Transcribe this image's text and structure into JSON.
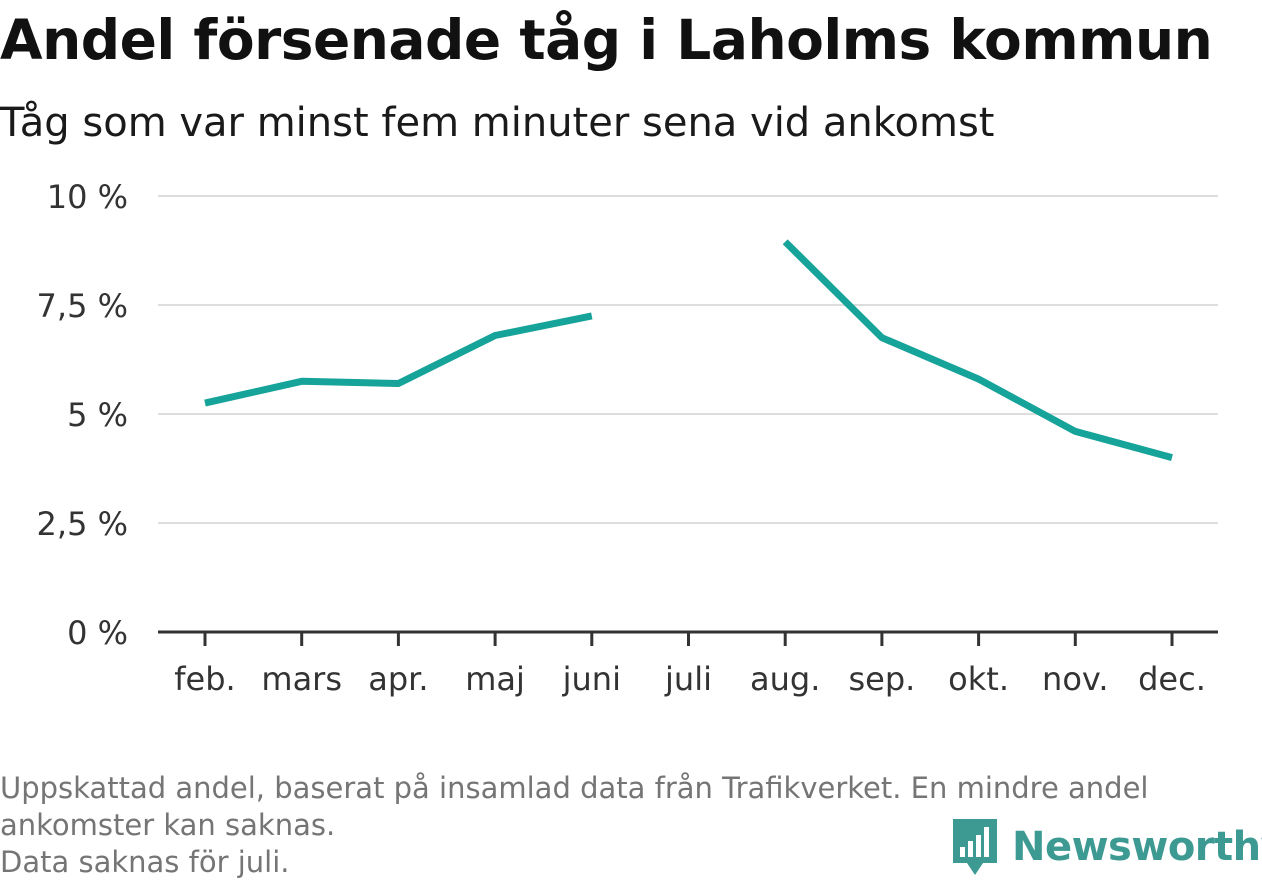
{
  "title": "Andel försenade tåg i Laholms kommun",
  "subtitle": "Tåg som var minst fem minuter sena vid ankomst",
  "footer": {
    "line1": "Uppskattad andel, baserat på insamlad data från Trafikverket. En mindre andel",
    "line2": "ankomster kan saknas.",
    "line3": "Data saknas för juli."
  },
  "brand": {
    "name": "Newsworthy",
    "icon": "newsworthy-logo-icon",
    "color": "#3d9a92"
  },
  "colors": {
    "line": "#16a399",
    "grid": "#dddddd",
    "axis": "#333333",
    "tick_text": "#333333"
  },
  "chart_data": {
    "type": "line",
    "categories": [
      "feb.",
      "mars",
      "apr.",
      "maj",
      "juni",
      "juli",
      "aug.",
      "sep.",
      "okt.",
      "nov.",
      "dec."
    ],
    "series": [
      {
        "values": [
          5.25,
          5.75,
          5.7,
          6.8,
          7.25,
          null,
          8.95,
          6.75,
          5.8,
          4.6,
          4.0
        ]
      }
    ],
    "ylim": [
      0,
      10
    ],
    "yticks": [
      0,
      2.5,
      5,
      7.5,
      10
    ],
    "ytick_labels": [
      "0 %",
      "2,5 %",
      "5 %",
      "7,5 %",
      "10 %"
    ],
    "grid": true,
    "legend": "none"
  }
}
